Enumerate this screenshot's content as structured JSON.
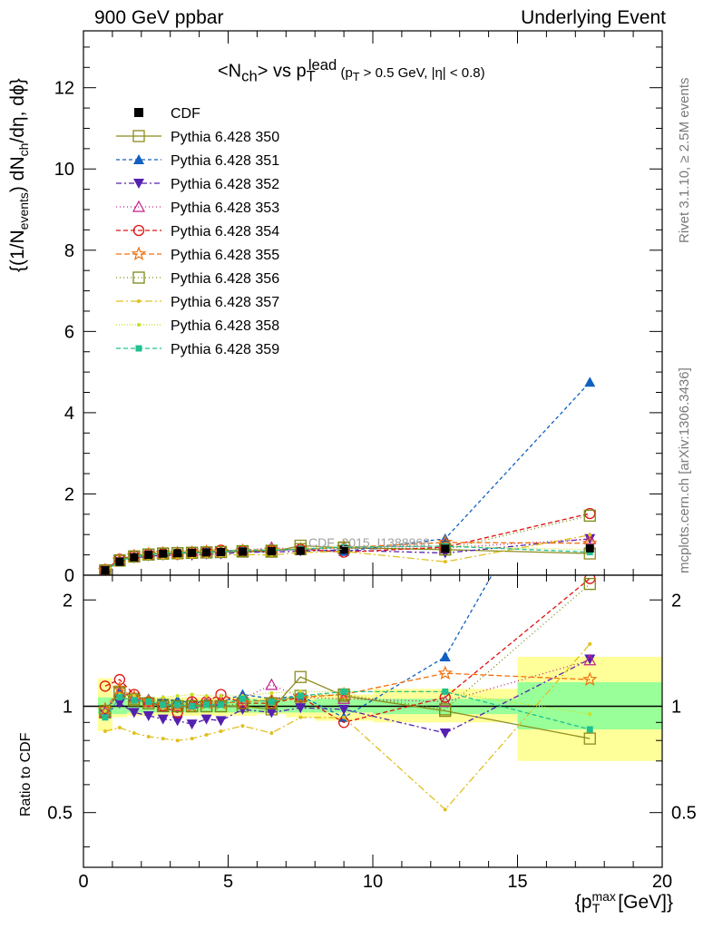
{
  "header": {
    "left": "900 GeV ppbar",
    "right": "Underlying Event"
  },
  "side_text": {
    "rivet": "Rivet 3.1.10, ≥ 2.5M events",
    "mcplots": "mcplots.cern.ch [arXiv:1306.3436]"
  },
  "watermark": "CDF_2015_I1388868",
  "labels": {
    "title_main": "<N",
    "title_sub": "ch",
    "title_mid": "> vs p",
    "title_sup": "lead",
    "title_sub2": "T",
    "title_cut": "(p",
    "title_cut_sub": "T",
    "title_cut_rest": " > 0.5 GeV, |η| < 0.8)",
    "ylabel_main": "{(1/N",
    "ylabel_main_sub": "events",
    "ylabel_main_rest": ") dN",
    "ylabel_main_sub2": "ch",
    "ylabel_main_end": "/dη, dϕ}",
    "ylabel_ratio": "Ratio to CDF",
    "xlabel": "{p",
    "xlabel_sup": "max",
    "xlabel_sub": "T",
    "xlabel_end": " [GeV]}"
  },
  "chart_data": {
    "type": "line",
    "xlim": [
      0,
      20
    ],
    "main_ylim": [
      0,
      13.4
    ],
    "ratio_ylim": [
      0.35,
      2.35
    ],
    "ratio_log": true,
    "x_ticks": [
      0,
      5,
      10,
      15,
      20
    ],
    "main_y_ticks": [
      0,
      2,
      4,
      6,
      8,
      10,
      12
    ],
    "ratio_y_ticks": [
      0.5,
      1,
      2
    ],
    "legend_placement": "top-left",
    "x": [
      0.75,
      1.25,
      1.75,
      2.25,
      2.75,
      3.25,
      3.75,
      4.25,
      4.75,
      5.5,
      6.5,
      7.5,
      9.0,
      12.5,
      17.5
    ],
    "data": {
      "name": "CDF",
      "y": [
        0.12,
        0.33,
        0.44,
        0.5,
        0.53,
        0.54,
        0.55,
        0.56,
        0.57,
        0.58,
        0.59,
        0.6,
        0.63,
        0.65,
        0.66
      ],
      "band_x": [
        0.5,
        1.0,
        1.5,
        2.0,
        2.5,
        3.0,
        3.5,
        4.0,
        4.5,
        5.0,
        6.0,
        7.0,
        8.0,
        10.0,
        15.0,
        20.0
      ],
      "band_stat_lo": [
        0.95,
        0.95,
        0.96,
        0.96,
        0.96,
        0.96,
        0.96,
        0.96,
        0.96,
        0.96,
        0.96,
        0.96,
        0.96,
        0.95,
        0.86
      ],
      "band_stat_hi": [
        1.06,
        1.05,
        1.04,
        1.04,
        1.04,
        1.04,
        1.04,
        1.04,
        1.04,
        1.04,
        1.04,
        1.04,
        1.05,
        1.05,
        1.17
      ],
      "band_tot_lo": [
        0.85,
        0.93,
        0.94,
        0.94,
        0.94,
        0.94,
        0.94,
        0.94,
        0.94,
        0.94,
        0.95,
        0.93,
        0.91,
        0.9,
        0.7
      ],
      "band_tot_hi": [
        1.2,
        1.08,
        1.06,
        1.06,
        1.06,
        1.06,
        1.06,
        1.06,
        1.06,
        1.06,
        1.06,
        1.07,
        1.08,
        1.12,
        1.38
      ]
    },
    "series": [
      {
        "name": "Pythia 6.428 350",
        "color": "#8c8c1e",
        "dash": "",
        "marker": "open-square",
        "ratio": [
          0.96,
          1.1,
          1.05,
          1.02,
          1.01,
          1.0,
          1.0,
          1.0,
          1.0,
          1.0,
          0.98,
          1.21,
          1.07,
          0.97,
          0.81
        ]
      },
      {
        "name": "Pythia 6.428 351",
        "color": "#1060c0",
        "dash": "4,3",
        "marker": "filled-triangle",
        "ratio": [
          0.97,
          1.1,
          1.06,
          1.05,
          1.04,
          1.04,
          1.02,
          1.03,
          1.03,
          1.08,
          1.05,
          1.07,
          0.93,
          1.38,
          7.2
        ]
      },
      {
        "name": "Pythia 6.428 352",
        "color": "#5520b0",
        "dash": "6,3,2,3",
        "marker": "filled-inv-triangle",
        "ratio": [
          0.95,
          1.02,
          0.96,
          0.94,
          0.92,
          0.91,
          0.89,
          0.92,
          0.91,
          0.98,
          0.96,
          0.99,
          0.98,
          0.84,
          1.36
        ]
      },
      {
        "name": "Pythia 6.428 353",
        "color": "#c0208a",
        "dash": "1,3",
        "marker": "open-triangle",
        "ratio": [
          0.96,
          1.1,
          1.06,
          1.03,
          1.0,
          1.0,
          1.02,
          1.03,
          1.04,
          1.05,
          1.15,
          1.06,
          1.05,
          1.03,
          1.35
        ]
      },
      {
        "name": "Pythia 6.428 354",
        "color": "#e01010",
        "dash": "5,3",
        "marker": "open-circle",
        "ratio": [
          1.14,
          1.19,
          1.08,
          1.03,
          1.0,
          0.96,
          1.03,
          1.03,
          1.08,
          1.02,
          1.02,
          1.06,
          0.9,
          1.06,
          2.3
        ]
      },
      {
        "name": "Pythia 6.428 355",
        "color": "#f07010",
        "dash": "6,3",
        "marker": "open-star",
        "ratio": [
          0.98,
          1.12,
          1.06,
          1.03,
          1.01,
          1.0,
          1.0,
          1.02,
          1.02,
          1.03,
          1.04,
          1.06,
          1.08,
          1.24,
          1.19
        ]
      },
      {
        "name": "Pythia 6.428 356",
        "color": "#7a8a10",
        "dash": "1,3",
        "marker": "open-square",
        "ratio": [
          0.97,
          1.09,
          1.04,
          1.02,
          1.0,
          1.0,
          1.0,
          1.0,
          1.0,
          1.02,
          1.02,
          1.07,
          1.08,
          0.98,
          2.22
        ]
      },
      {
        "name": "Pythia 6.428 357",
        "color": "#e0c020",
        "dash": "8,3,2,3",
        "marker": "dot",
        "ratio": [
          0.85,
          0.87,
          0.84,
          0.82,
          0.81,
          0.8,
          0.81,
          0.83,
          0.85,
          0.88,
          0.84,
          0.93,
          0.93,
          0.51,
          1.5
        ]
      },
      {
        "name": "Pythia 6.428 358",
        "color": "#c8e020",
        "dash": "1,2",
        "marker": "dot",
        "ratio": [
          0.97,
          1.08,
          1.07,
          1.04,
          1.06,
          1.07,
          1.08,
          1.07,
          1.07,
          1.07,
          1.09,
          1.1,
          1.1,
          1.1,
          0.95
        ]
      },
      {
        "name": "Pythia 6.428 359",
        "color": "#20c090",
        "dash": "5,3",
        "marker": "filled-square",
        "ratio": [
          0.93,
          1.06,
          1.04,
          1.03,
          1.01,
          1.01,
          1.0,
          1.01,
          1.01,
          1.05,
          1.03,
          1.07,
          1.1,
          1.1,
          0.86
        ]
      }
    ]
  }
}
